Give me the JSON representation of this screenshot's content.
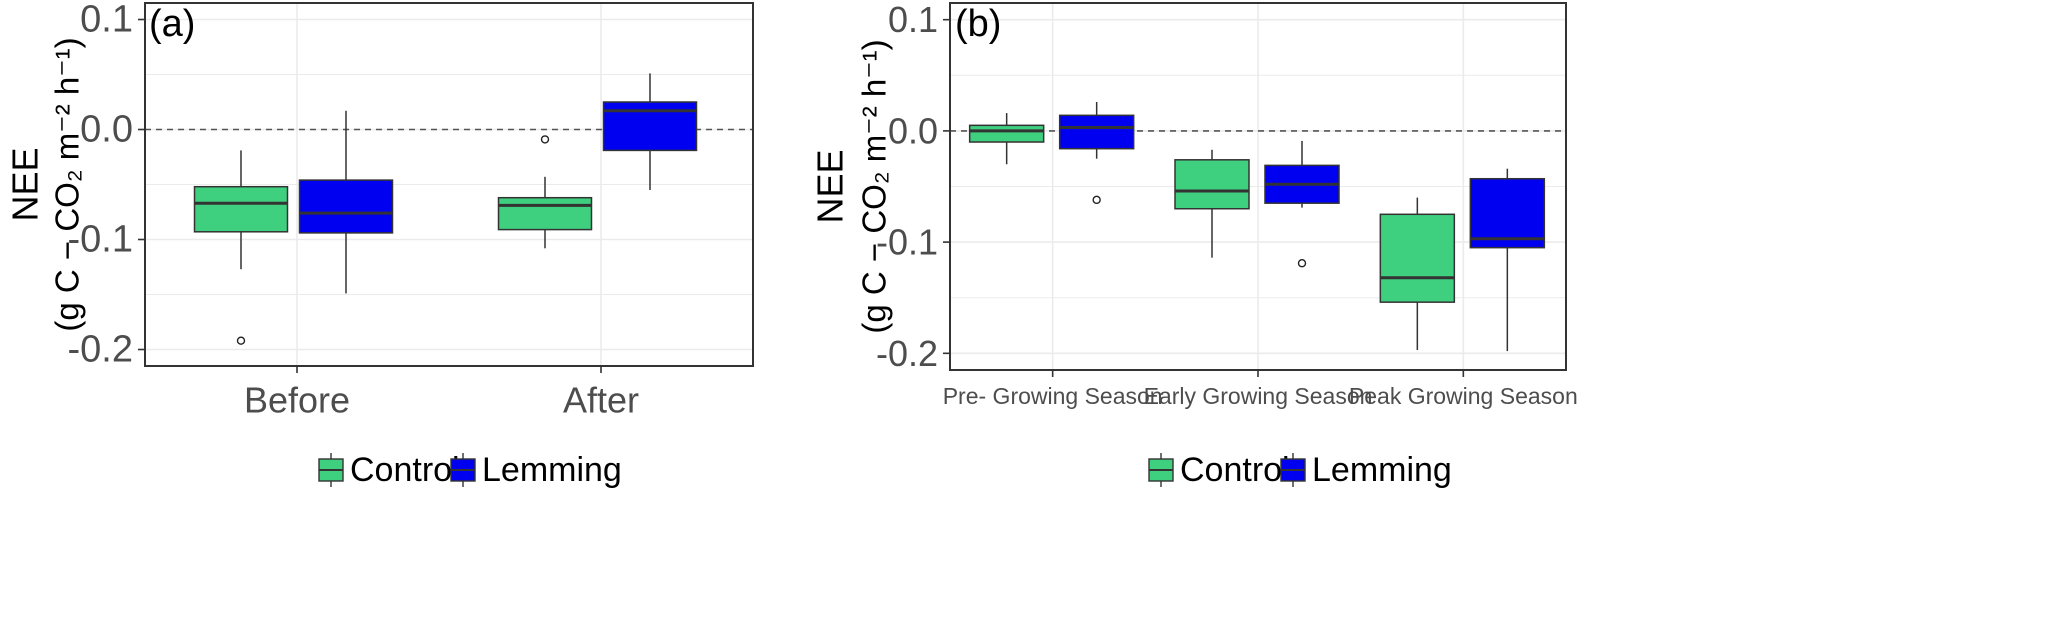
{
  "colors": {
    "control": "#3ecf7f",
    "lemming": "#0000f0",
    "grid": "#ebebeb",
    "border": "#333333",
    "median": "#333333"
  },
  "chart_data": [
    {
      "panel_label": "(a)",
      "type": "box",
      "ylabel_line1": "NEE",
      "ylabel_line2": "(g C − CO₂ m⁻² h⁻¹)",
      "ylim": [
        -0.215,
        0.115
      ],
      "yticks": [
        0.1,
        0.0,
        -0.1,
        -0.2
      ],
      "ytick_labels": [
        "0.1",
        "0.0",
        "-0.1",
        "-0.2"
      ],
      "reference_line": 0.0,
      "grid": true,
      "categories": [
        "Before",
        "After"
      ],
      "series": [
        {
          "name": "Control",
          "boxes": [
            {
              "category": "Before",
              "min": -0.127,
              "q1": -0.093,
              "median": -0.067,
              "q3": -0.052,
              "max": -0.019,
              "outliers": [
                -0.192
              ]
            },
            {
              "category": "After",
              "min": -0.108,
              "q1": -0.091,
              "median": -0.069,
              "q3": -0.062,
              "max": -0.043,
              "outliers": [
                -0.009
              ]
            }
          ]
        },
        {
          "name": "Lemming",
          "boxes": [
            {
              "category": "Before",
              "min": -0.149,
              "q1": -0.094,
              "median": -0.076,
              "q3": -0.046,
              "max": 0.017,
              "outliers": []
            },
            {
              "category": "After",
              "min": -0.055,
              "q1": -0.019,
              "median": 0.017,
              "q3": 0.025,
              "max": 0.051,
              "outliers": []
            }
          ]
        }
      ],
      "legend": {
        "position": "bottom",
        "entries": [
          "Control",
          "Lemming"
        ]
      }
    },
    {
      "panel_label": "(b)",
      "type": "box",
      "ylabel_line1": "NEE",
      "ylabel_line2": "(g C − CO₂ m⁻² h⁻¹)",
      "ylim": [
        -0.215,
        0.115
      ],
      "yticks": [
        0.1,
        0.0,
        -0.1,
        -0.2
      ],
      "ytick_labels": [
        "0.1",
        "0.0",
        "-0.1",
        "-0.2"
      ],
      "reference_line": 0.0,
      "grid": true,
      "categories": [
        "Pre- Growing Season",
        "Early Growing Season",
        "Peak Growing Season"
      ],
      "series": [
        {
          "name": "Control",
          "boxes": [
            {
              "category": "Pre- Growing Season",
              "min": -0.03,
              "q1": -0.01,
              "median": 0.0,
              "q3": 0.005,
              "max": 0.016,
              "outliers": []
            },
            {
              "category": "Early Growing Season",
              "min": -0.114,
              "q1": -0.07,
              "median": -0.054,
              "q3": -0.026,
              "max": -0.017,
              "outliers": []
            },
            {
              "category": "Peak Growing Season",
              "min": -0.197,
              "q1": -0.154,
              "median": -0.132,
              "q3": -0.075,
              "max": -0.06,
              "outliers": []
            }
          ]
        },
        {
          "name": "Lemming",
          "boxes": [
            {
              "category": "Pre- Growing Season",
              "min": -0.025,
              "q1": -0.016,
              "median": 0.003,
              "q3": 0.014,
              "max": 0.026,
              "outliers": [
                -0.062
              ]
            },
            {
              "category": "Early Growing Season",
              "min": -0.069,
              "q1": -0.065,
              "median": -0.048,
              "q3": -0.031,
              "max": -0.009,
              "outliers": [
                -0.119
              ]
            },
            {
              "category": "Peak Growing Season",
              "min": -0.198,
              "q1": -0.105,
              "median": -0.097,
              "q3": -0.043,
              "max": -0.034,
              "outliers": []
            }
          ]
        }
      ],
      "legend": {
        "position": "bottom",
        "entries": [
          "Control",
          "Lemming"
        ]
      }
    }
  ]
}
